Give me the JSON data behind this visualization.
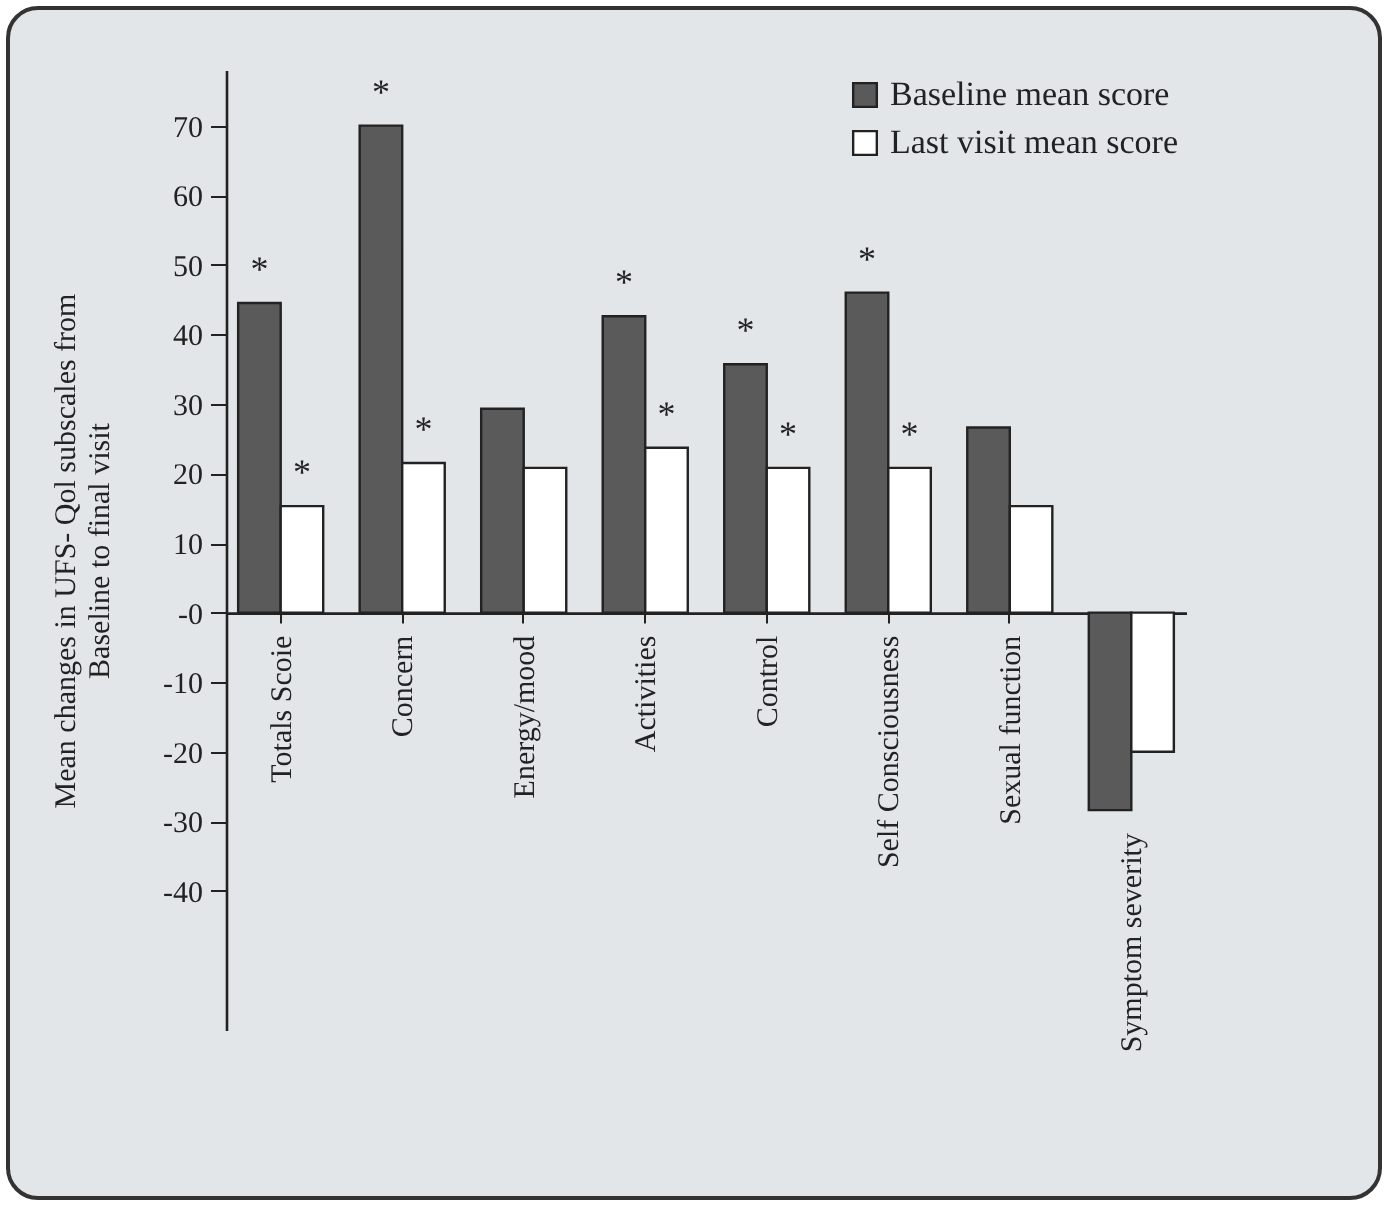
{
  "chart_data": {
    "type": "bar",
    "ylabel": "Mean changes in UFS- Qol subscales from Baseline to final visit",
    "categories": [
      "Totals Scoie",
      "Concern",
      "Energy/mood",
      "Activities",
      "Control",
      "Self Consciousness",
      "Sexual function",
      "Symptom severity"
    ],
    "series": [
      {
        "name": "Baseline mean score",
        "color": "#5a5a5a",
        "values": [
          44.5,
          70,
          29.3,
          42.6,
          35.7,
          46,
          26.6,
          -28.4
        ]
      },
      {
        "name": "Last visit mean score",
        "color": "#ffffff",
        "values": [
          15.3,
          21.5,
          20.8,
          23.7,
          20.8,
          20.8,
          15.3,
          -20
        ]
      }
    ],
    "ylim": [
      -60,
      78
    ],
    "yticks": [
      -40,
      -30,
      -20,
      -10,
      {
        "value": 0,
        "label": "-0"
      },
      10,
      20,
      30,
      40,
      50,
      60,
      70
    ],
    "grid": false,
    "legend": "top right",
    "annotations": [
      {
        "text": "*",
        "x": "Totals Scoie",
        "y": 44.5
      },
      {
        "text": "*",
        "x": "Totals Scoie",
        "y": 15.3
      },
      {
        "text": "*",
        "x": "Concern",
        "y": 70
      },
      {
        "text": "*",
        "x": "Concern",
        "y": 21.5
      },
      {
        "text": "*",
        "x": "Activities",
        "y": 42.6
      },
      {
        "text": "*",
        "x": "Activities",
        "y": 23.7
      },
      {
        "text": "*",
        "x": "Control",
        "y": 35.7
      },
      {
        "text": "*",
        "x": "Control",
        "y": 20.8
      },
      {
        "text": "*",
        "x": "Self Consciousness",
        "y": 46
      },
      {
        "text": "*",
        "x": "Self Consciousness",
        "y": 20.8
      }
    ]
  }
}
